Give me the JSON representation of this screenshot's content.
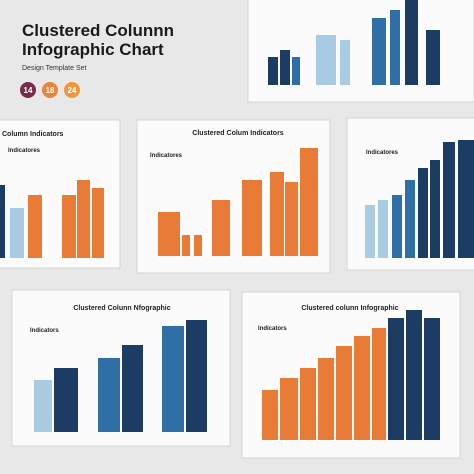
{
  "header": {
    "title": [
      "Clustered Colunnn",
      "Infographic Chart"
    ],
    "subtitle": "Design Template Set",
    "badges": [
      "14",
      "18",
      "24"
    ]
  },
  "cards": [
    {
      "title": "Column Indicators",
      "subtitle": "Indicatores"
    },
    {
      "title": "Clustered Colum Indicators",
      "subtitle": "Indicatores"
    },
    {
      "title": "Indicatores"
    },
    {
      "title": "Clustered Colunn Nfographic",
      "subtitle": "Indicators"
    },
    {
      "title": "Clustered colunn Infographic",
      "subtitle": "Indicators"
    }
  ]
}
